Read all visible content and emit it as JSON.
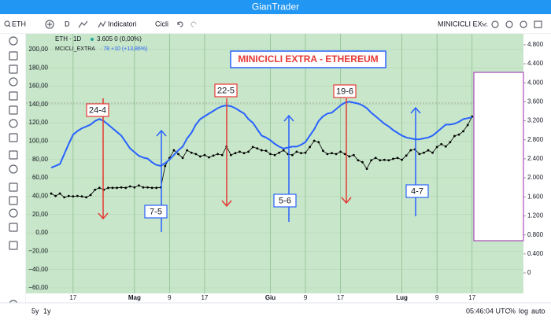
{
  "app": {
    "title": "GianTrader"
  },
  "toolbar": {
    "symbol": "ETH",
    "interval": "D",
    "indicators": "Indicatori",
    "cycles": "Cicli",
    "study": "MINICICLI EX..."
  },
  "footer": {
    "ranges": [
      "5y",
      "1y"
    ],
    "time": "05:46:04 UTC",
    "percent": "%",
    "log": "log",
    "auto": "auto"
  },
  "chart_data": {
    "type": "line",
    "title": "MINICICLI EXTRA - ETHEREUM",
    "legend_info": [
      "3.605  0 (0,00%)",
      "· 78 +10 (+13,86%)"
    ],
    "categories": [
      null,
      null,
      null,
      null,
      null,
      "17",
      null,
      null,
      null,
      null,
      null,
      null,
      null,
      null,
      null,
      null,
      null,
      null,
      null,
      "Mag",
      null,
      null,
      null,
      null,
      null,
      null,
      null,
      "9",
      null,
      null,
      null,
      null,
      null,
      null,
      null,
      "17",
      null,
      null,
      null,
      null,
      null,
      null,
      null,
      null,
      null,
      null,
      null,
      null,
      null,
      null,
      "Giu",
      null,
      null,
      null,
      null,
      null,
      null,
      null,
      "9",
      null,
      null,
      null,
      null,
      null,
      null,
      null,
      "17",
      null,
      null,
      null,
      null,
      null,
      null,
      null,
      null,
      null,
      null,
      null,
      null,
      null,
      "Lug",
      null,
      null,
      null,
      null,
      null,
      null,
      null,
      "9",
      null,
      null,
      null,
      null,
      null,
      null,
      null,
      "17",
      null,
      null,
      null,
      null,
      null,
      null,
      null,
      null,
      null,
      null,
      null,
      null
    ],
    "series": [
      {
        "name": "ETH · 1D",
        "color": "#000000",
        "axis": "y2",
        "values": [
          1670,
          1620,
          1670,
          1590,
          1620,
          1610,
          1620,
          1610,
          1590,
          1640,
          1750,
          1790,
          1750,
          1790,
          1790,
          1790,
          1800,
          1790,
          1820,
          1800,
          1840,
          1800,
          1800,
          1790,
          1790,
          1800,
          2250,
          2420,
          2580,
          2500,
          2420,
          2580,
          2530,
          2500,
          2450,
          2480,
          2430,
          2470,
          2500,
          2480,
          2660,
          2480,
          2520,
          2550,
          2520,
          2550,
          2650,
          2620,
          2580,
          2570,
          2500,
          2480,
          2530,
          2580,
          2500,
          2480,
          2550,
          2520,
          2530,
          2650,
          2780,
          2750,
          2570,
          2500,
          2520,
          2500,
          2550,
          2500,
          2450,
          2480,
          2370,
          2330,
          2190,
          2370,
          2420,
          2370,
          2380,
          2370,
          2400,
          2420,
          2380,
          2470,
          2580,
          2600,
          2500,
          2530,
          2580,
          2530,
          2650,
          2710,
          2660,
          2750,
          2880,
          2910,
          2980,
          3110,
          3290,
          null,
          null,
          null,
          null,
          null,
          null,
          null,
          null,
          null,
          null,
          null,
          null
        ]
      },
      {
        "name": "MCICLI_EXTRA",
        "color": "#2962ff",
        "values": [
          71,
          73,
          75,
          86,
          97,
          107,
          111,
          114,
          116,
          118,
          122,
          124,
          122,
          118,
          114,
          110,
          106,
          99,
          92,
          88,
          84,
          82,
          81,
          77,
          74,
          73,
          76,
          80,
          85,
          90,
          94,
          103,
          109,
          118,
          124,
          127,
          130,
          133,
          136,
          138,
          139,
          138,
          136,
          133,
          130,
          124,
          120,
          113,
          106,
          104,
          101,
          97,
          94,
          92,
          93,
          94,
          94,
          96,
          99,
          106,
          113,
          122,
          127,
          130,
          131,
          135,
          139,
          142,
          143,
          142,
          141,
          139,
          136,
          131,
          127,
          123,
          119,
          116,
          112,
          109,
          106,
          104,
          103,
          102,
          102,
          103,
          104,
          106,
          110,
          114,
          118,
          118,
          119,
          121,
          124,
          125,
          126,
          null,
          null,
          null,
          null,
          null,
          null,
          null,
          null,
          null,
          null,
          null,
          null
        ]
      }
    ],
    "ylim": [
      -66,
      217
    ],
    "yticks": [
      {
        "value": 200,
        "label": "200,00"
      },
      {
        "value": 180,
        "label": "180,00"
      },
      {
        "value": 160,
        "label": "160,00"
      },
      {
        "value": 140,
        "label": "140,00"
      },
      {
        "value": 120,
        "label": "120,00"
      },
      {
        "value": 100,
        "label": "100,00"
      },
      {
        "value": 80,
        "label": "80,00"
      },
      {
        "value": 60,
        "label": "60,00"
      },
      {
        "value": 40,
        "label": "40,00"
      },
      {
        "value": 20,
        "label": "20,00"
      },
      {
        "value": 0,
        "label": "0,00"
      },
      {
        "value": -20,
        "label": "−20,00"
      },
      {
        "value": -40,
        "label": "−40,00"
      },
      {
        "value": -60,
        "label": "−60,00"
      }
    ],
    "y2lim": [
      -430,
      5030
    ],
    "y2ticks": [
      {
        "value": 4800,
        "label": "4.800"
      },
      {
        "value": 4400,
        "label": "4.400"
      },
      {
        "value": 4000,
        "label": "4.000"
      },
      {
        "value": 3600,
        "label": "3.600"
      },
      {
        "value": 3200,
        "label": "3.200"
      },
      {
        "value": 2800,
        "label": "2.800"
      },
      {
        "value": 2400,
        "label": "2.400"
      },
      {
        "value": 2000,
        "label": "2.000"
      },
      {
        "value": 1600,
        "label": "1.600"
      },
      {
        "value": 1200,
        "label": "1.200"
      },
      {
        "value": 800,
        "label": "0.800"
      },
      {
        "value": 400,
        "label": "0.400"
      },
      0
    ],
    "grid": true,
    "annotations": [
      "24-4",
      "22-5",
      "19-6",
      "7-5",
      "5-6",
      "4-7"
    ]
  }
}
